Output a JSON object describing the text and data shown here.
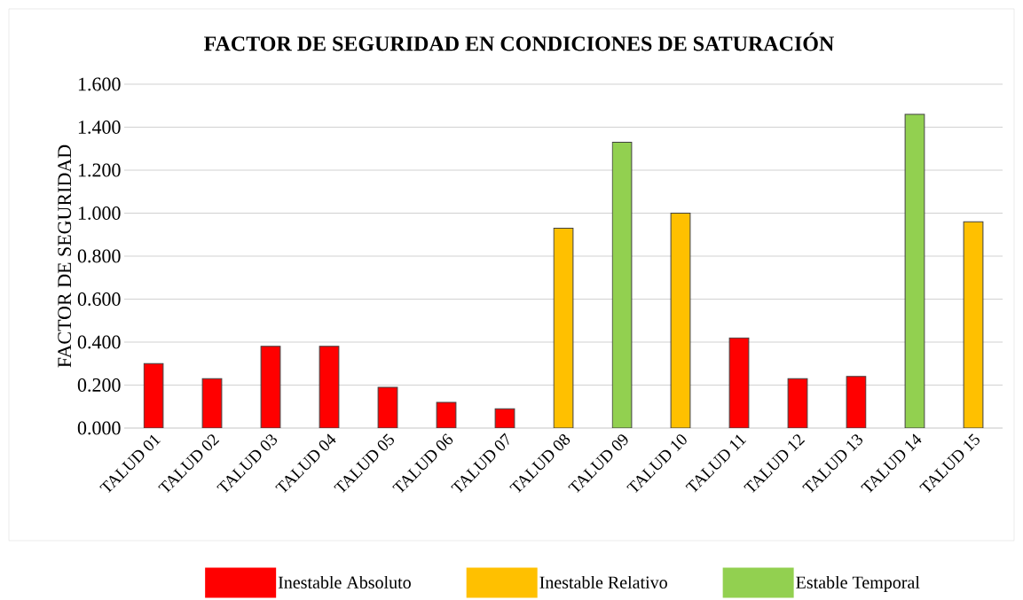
{
  "chart_data": {
    "type": "bar",
    "title": "FACTOR DE SEGURIDAD EN CONDICIONES DE SATURACIÓN",
    "ylabel": "FACTOR DE SEGURIDAD",
    "categories": [
      "TALUD 01",
      "TALUD 02",
      "TALUD 03",
      "TALUD 04",
      "TALUD 05",
      "TALUD 06",
      "TALUD 07",
      "TALUD 08",
      "TALUD 09",
      "TALUD 10",
      "TALUD 11",
      "TALUD 12",
      "TALUD 13",
      "TALUD 14",
      "TALUD 15"
    ],
    "series": [
      {
        "name": "Inestable Absoluto",
        "color": "#ff0000",
        "values": [
          0.3,
          0.23,
          0.38,
          0.38,
          0.19,
          0.12,
          0.09,
          null,
          null,
          null,
          0.42,
          0.23,
          0.24,
          null,
          null
        ]
      },
      {
        "name": "Inestable Relativo",
        "color": "#ffc000",
        "values": [
          null,
          null,
          null,
          null,
          null,
          null,
          null,
          0.93,
          null,
          1.0,
          null,
          null,
          null,
          null,
          0.96
        ]
      },
      {
        "name": "Estable Temporal",
        "color": "#92d050",
        "values": [
          null,
          null,
          null,
          null,
          null,
          null,
          null,
          null,
          1.33,
          null,
          null,
          null,
          null,
          1.46,
          null
        ]
      }
    ],
    "ylim": [
      0,
      1.6
    ],
    "yticks": [
      {
        "value": 0,
        "label": "0.000"
      },
      {
        "value": 0.2,
        "label": "0.200"
      },
      {
        "value": 0.4,
        "label": "0.400"
      },
      {
        "value": 0.6,
        "label": "0.600"
      },
      {
        "value": 0.8,
        "label": "0.800"
      },
      {
        "value": 1.0,
        "label": "1.000"
      },
      {
        "value": 1.2,
        "label": "1.200"
      },
      {
        "value": 1.4,
        "label": "1.400"
      },
      {
        "value": 1.6,
        "label": "1.600"
      }
    ],
    "grid": "y",
    "legend": "bottom"
  }
}
